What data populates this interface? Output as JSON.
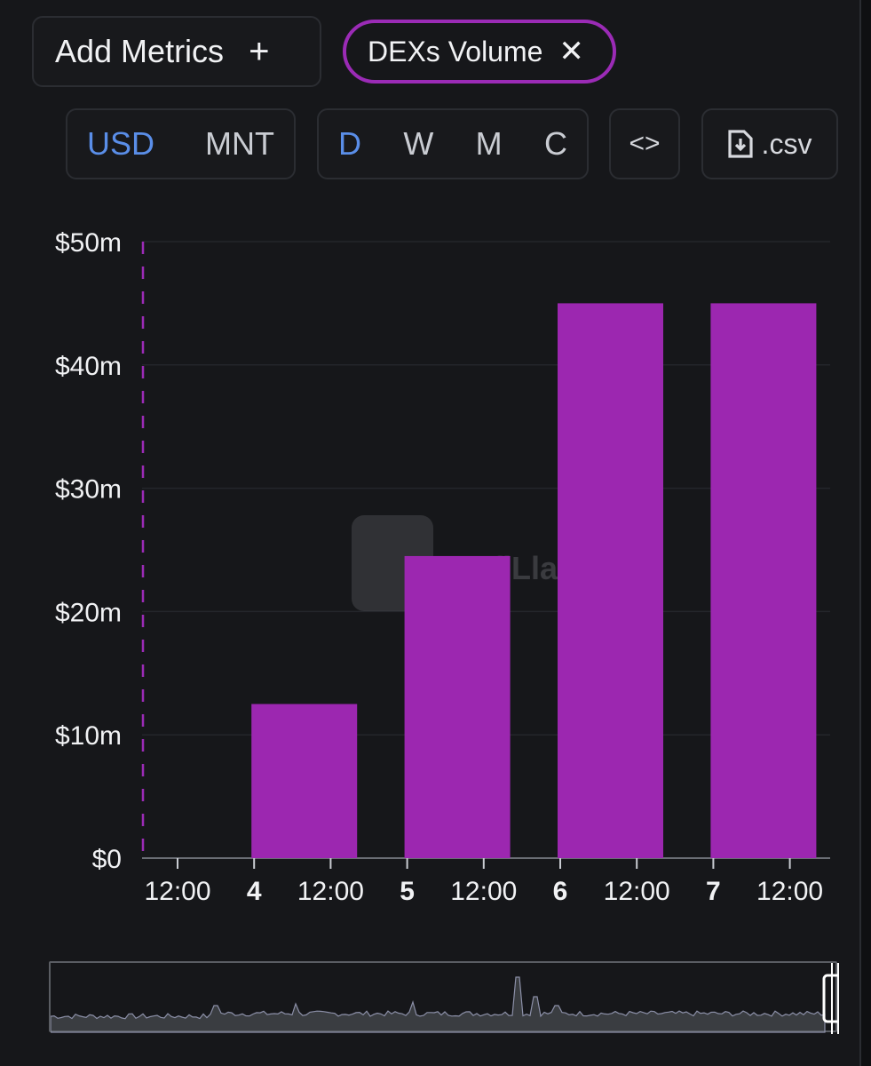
{
  "toolbar": {
    "add_metrics_label": "Add Metrics",
    "add_icon": "plus-icon",
    "active_metric_label": "DEXs Volume",
    "remove_icon": "close-icon",
    "currency_options": [
      "USD",
      "MNT"
    ],
    "currency_selected": "USD",
    "granularity_options": [
      "D",
      "W",
      "M",
      "C"
    ],
    "granularity_selected": "D",
    "embed_label": "<>",
    "embed_icon": "code-icon",
    "csv_label": ".csv",
    "csv_icon": "file-download-icon"
  },
  "colors": {
    "accent": "#9b2bb6",
    "bar": "#9c27b0",
    "selected": "#5a8ee8"
  },
  "chart_data": {
    "type": "bar",
    "x": [
      "3 12:00",
      "4",
      "4 12:00",
      "5",
      "5 12:00",
      "6",
      "6 12:00",
      "7",
      "7 12:00"
    ],
    "x_tick_labels": [
      {
        "label": "12:00",
        "bold": false
      },
      {
        "label": "4",
        "bold": true
      },
      {
        "label": "12:00",
        "bold": false
      },
      {
        "label": "5",
        "bold": true
      },
      {
        "label": "12:00",
        "bold": false
      },
      {
        "label": "6",
        "bold": true
      },
      {
        "label": "12:00",
        "bold": false
      },
      {
        "label": "7",
        "bold": true
      },
      {
        "label": "12:00",
        "bold": false
      }
    ],
    "bars": [
      {
        "day": "4",
        "value": 12.5
      },
      {
        "day": "5",
        "value": 24.5
      },
      {
        "day": "6",
        "value": 45
      },
      {
        "day": "7",
        "value": 45
      }
    ],
    "y_ticks": [
      "$0",
      "$10m",
      "$20m",
      "$30m",
      "$40m",
      "$50m"
    ],
    "ylim": [
      0,
      50
    ],
    "y_unit": "$m",
    "grid": true,
    "watermark": "DefiLlama"
  }
}
